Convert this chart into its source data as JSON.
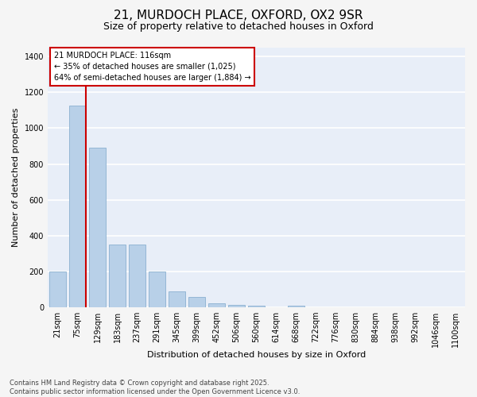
{
  "title1": "21, MURDOCH PLACE, OXFORD, OX2 9SR",
  "title2": "Size of property relative to detached houses in Oxford",
  "xlabel": "Distribution of detached houses by size in Oxford",
  "ylabel": "Number of detached properties",
  "categories": [
    "21sqm",
    "75sqm",
    "129sqm",
    "183sqm",
    "237sqm",
    "291sqm",
    "345sqm",
    "399sqm",
    "452sqm",
    "506sqm",
    "560sqm",
    "614sqm",
    "668sqm",
    "722sqm",
    "776sqm",
    "830sqm",
    "884sqm",
    "938sqm",
    "992sqm",
    "1046sqm",
    "1100sqm"
  ],
  "values": [
    197,
    1127,
    891,
    350,
    350,
    197,
    90,
    58,
    22,
    14,
    8,
    0,
    8,
    0,
    0,
    0,
    0,
    0,
    0,
    0,
    0
  ],
  "bar_color": "#b8d0e8",
  "bar_edge_color": "#8ab0d0",
  "plot_bg_color": "#e8eef8",
  "fig_bg_color": "#f5f5f5",
  "grid_color": "#ffffff",
  "vline_color": "#cc0000",
  "vline_x": 1.425,
  "annotation_text": "21 MURDOCH PLACE: 116sqm\n← 35% of detached houses are smaller (1,025)\n64% of semi-detached houses are larger (1,884) →",
  "ann_box_edgecolor": "#cc0000",
  "ylim": [
    0,
    1450
  ],
  "yticks": [
    0,
    200,
    400,
    600,
    800,
    1000,
    1200,
    1400
  ],
  "title1_fontsize": 11,
  "title2_fontsize": 9,
  "xlabel_fontsize": 8,
  "ylabel_fontsize": 8,
  "tick_fontsize": 7,
  "ann_fontsize": 7,
  "footer_fontsize": 6,
  "footer_text": "Contains HM Land Registry data © Crown copyright and database right 2025.\nContains public sector information licensed under the Open Government Licence v3.0."
}
